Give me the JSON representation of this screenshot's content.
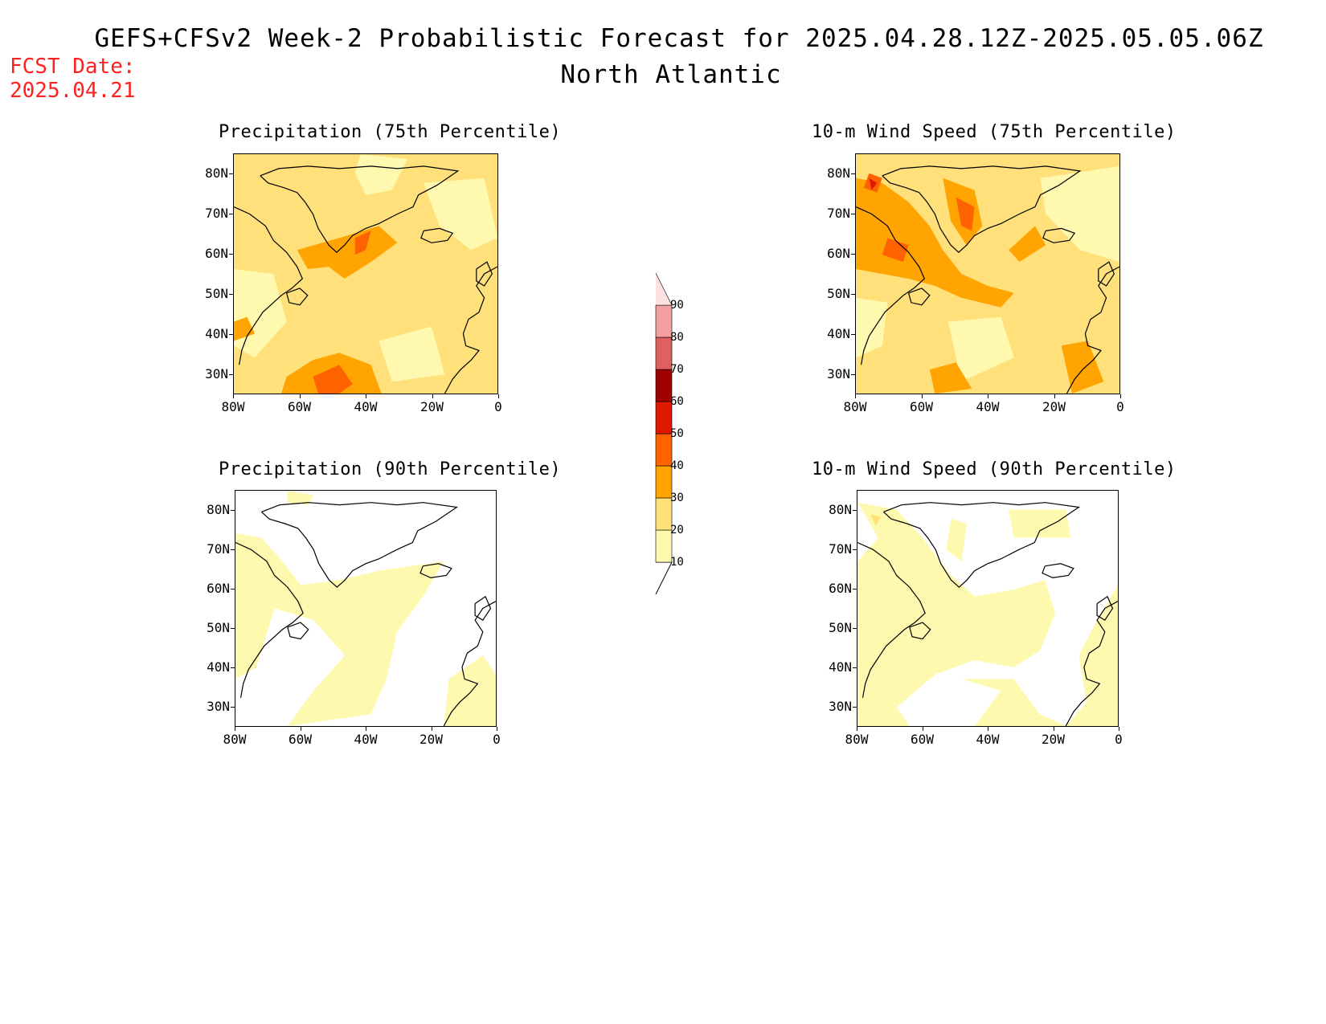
{
  "header": {
    "title": "GEFS+CFSv2 Week-2 Probabilistic Forecast for 2025.04.28.12Z-2025.05.05.06Z",
    "region": "North Atlantic",
    "fcst_label": "FCST Date:",
    "fcst_date": "2025.04.21"
  },
  "axes": {
    "y_ticks": [
      "80N",
      "70N",
      "60N",
      "50N",
      "40N",
      "30N"
    ],
    "x_ticks": [
      "80W",
      "60W",
      "40W",
      "20W",
      "0"
    ]
  },
  "panels": [
    {
      "title": "Precipitation (75th Percentile)",
      "field": "precip75"
    },
    {
      "title": "10-m Wind Speed (75th Percentile)",
      "field": "wind75"
    },
    {
      "title": "Precipitation (90th Percentile)",
      "field": "precip90"
    },
    {
      "title": "10-m Wind Speed (90th Percentile)",
      "field": "wind90"
    }
  ],
  "colorbar": {
    "levels": [
      "10",
      "20",
      "30",
      "40",
      "50",
      "60",
      "70",
      "80",
      "90"
    ],
    "colors": [
      "#fff9b0",
      "#ffe07a",
      "#ffa400",
      "#ff6200",
      "#e01800",
      "#a00000",
      "#e06060",
      "#f4a0a0",
      "#fde0e0"
    ]
  }
}
